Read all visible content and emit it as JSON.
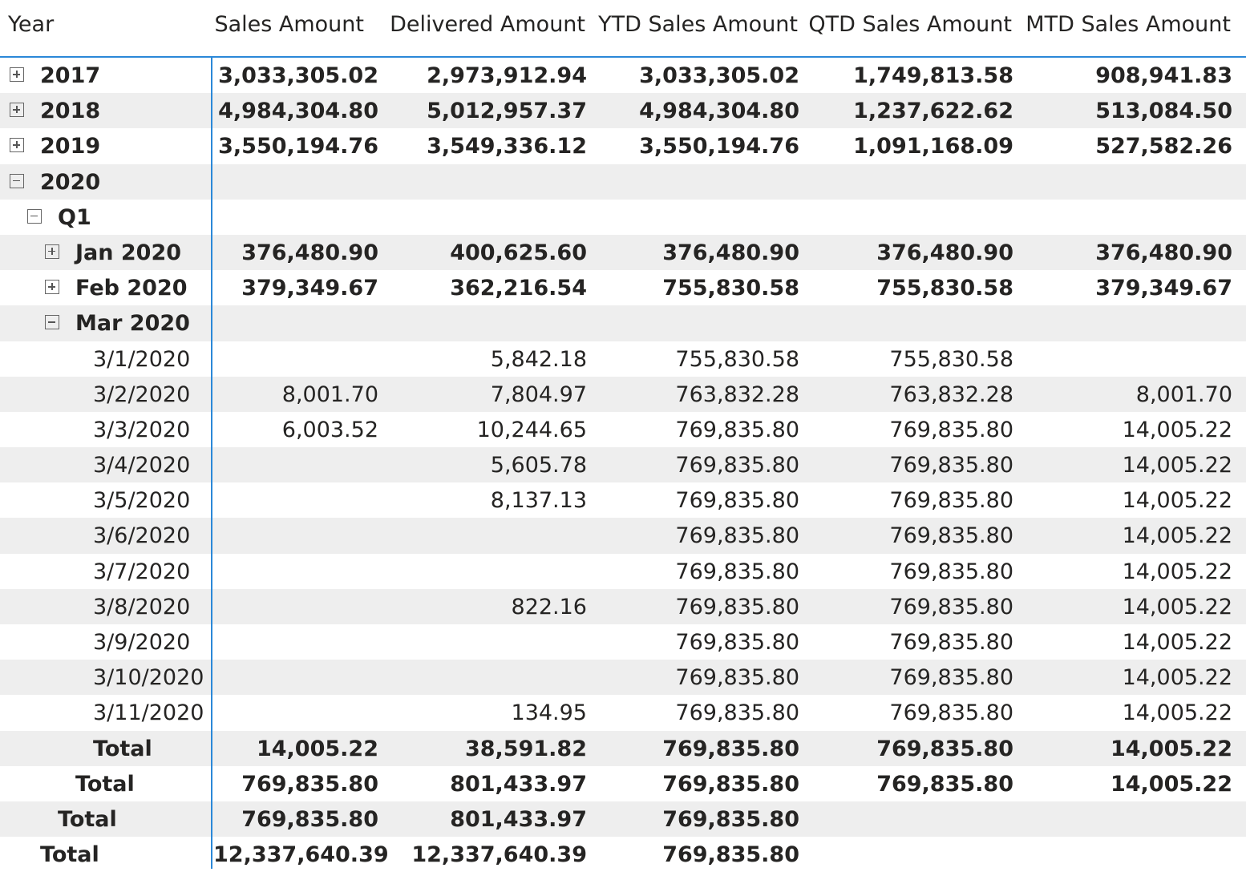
{
  "headers": {
    "year": "Year",
    "sales": "Sales Amount",
    "delivered": "Delivered Amount",
    "ytd": "YTD Sales Amount",
    "qtd": "QTD Sales Amount",
    "mtd": "MTD Sales Amount"
  },
  "rows": [
    {
      "label": "2017",
      "sales": "3,033,305.02",
      "delivered": "2,973,912.94",
      "ytd": "3,033,305.02",
      "qtd": "1,749,813.58",
      "mtd": "908,941.83"
    },
    {
      "label": "2018",
      "sales": "4,984,304.80",
      "delivered": "5,012,957.37",
      "ytd": "4,984,304.80",
      "qtd": "1,237,622.62",
      "mtd": "513,084.50"
    },
    {
      "label": "2019",
      "sales": "3,550,194.76",
      "delivered": "3,549,336.12",
      "ytd": "3,550,194.76",
      "qtd": "1,091,168.09",
      "mtd": "527,582.26"
    },
    {
      "label": "2020",
      "sales": "",
      "delivered": "",
      "ytd": "",
      "qtd": "",
      "mtd": ""
    },
    {
      "label": "Q1",
      "sales": "",
      "delivered": "",
      "ytd": "",
      "qtd": "",
      "mtd": ""
    },
    {
      "label": "Jan 2020",
      "sales": "376,480.90",
      "delivered": "400,625.60",
      "ytd": "376,480.90",
      "qtd": "376,480.90",
      "mtd": "376,480.90"
    },
    {
      "label": "Feb 2020",
      "sales": "379,349.67",
      "delivered": "362,216.54",
      "ytd": "755,830.58",
      "qtd": "755,830.58",
      "mtd": "379,349.67"
    },
    {
      "label": "Mar 2020",
      "sales": "",
      "delivered": "",
      "ytd": "",
      "qtd": "",
      "mtd": ""
    },
    {
      "label": "3/1/2020",
      "sales": "",
      "delivered": "5,842.18",
      "ytd": "755,830.58",
      "qtd": "755,830.58",
      "mtd": ""
    },
    {
      "label": "3/2/2020",
      "sales": "8,001.70",
      "delivered": "7,804.97",
      "ytd": "763,832.28",
      "qtd": "763,832.28",
      "mtd": "8,001.70"
    },
    {
      "label": "3/3/2020",
      "sales": "6,003.52",
      "delivered": "10,244.65",
      "ytd": "769,835.80",
      "qtd": "769,835.80",
      "mtd": "14,005.22"
    },
    {
      "label": "3/4/2020",
      "sales": "",
      "delivered": "5,605.78",
      "ytd": "769,835.80",
      "qtd": "769,835.80",
      "mtd": "14,005.22"
    },
    {
      "label": "3/5/2020",
      "sales": "",
      "delivered": "8,137.13",
      "ytd": "769,835.80",
      "qtd": "769,835.80",
      "mtd": "14,005.22"
    },
    {
      "label": "3/6/2020",
      "sales": "",
      "delivered": "",
      "ytd": "769,835.80",
      "qtd": "769,835.80",
      "mtd": "14,005.22"
    },
    {
      "label": "3/7/2020",
      "sales": "",
      "delivered": "",
      "ytd": "769,835.80",
      "qtd": "769,835.80",
      "mtd": "14,005.22"
    },
    {
      "label": "3/8/2020",
      "sales": "",
      "delivered": "822.16",
      "ytd": "769,835.80",
      "qtd": "769,835.80",
      "mtd": "14,005.22"
    },
    {
      "label": "3/9/2020",
      "sales": "",
      "delivered": "",
      "ytd": "769,835.80",
      "qtd": "769,835.80",
      "mtd": "14,005.22"
    },
    {
      "label": "3/10/2020",
      "sales": "",
      "delivered": "",
      "ytd": "769,835.80",
      "qtd": "769,835.80",
      "mtd": "14,005.22"
    },
    {
      "label": "3/11/2020",
      "sales": "",
      "delivered": "134.95",
      "ytd": "769,835.80",
      "qtd": "769,835.80",
      "mtd": "14,005.22"
    },
    {
      "label": "Total",
      "sales": "14,005.22",
      "delivered": "38,591.82",
      "ytd": "769,835.80",
      "qtd": "769,835.80",
      "mtd": "14,005.22"
    },
    {
      "label": "Total",
      "sales": "769,835.80",
      "delivered": "801,433.97",
      "ytd": "769,835.80",
      "qtd": "769,835.80",
      "mtd": "14,005.22"
    },
    {
      "label": "Total",
      "sales": "769,835.80",
      "delivered": "801,433.97",
      "ytd": "769,835.80",
      "qtd": "",
      "mtd": ""
    },
    {
      "label": "Total",
      "sales": "12,337,640.39",
      "delivered": "12,337,640.39",
      "ytd": "769,835.80",
      "qtd": "",
      "mtd": ""
    }
  ],
  "colors": {
    "accent": "#2b88d8",
    "band": "#eeeeee",
    "text": "#252423"
  }
}
